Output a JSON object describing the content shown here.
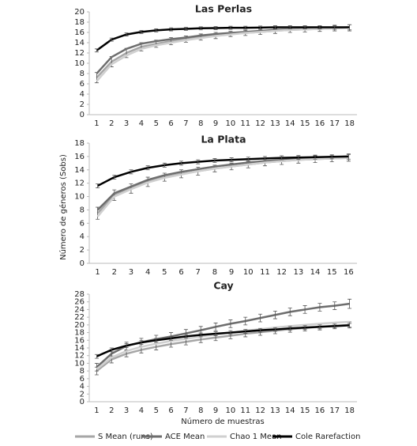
{
  "chart_data": [
    {
      "type": "line",
      "title": "Las Perlas",
      "categories": [
        1,
        2,
        3,
        4,
        5,
        6,
        7,
        8,
        9,
        10,
        11,
        12,
        13,
        14,
        15,
        16,
        17,
        18
      ],
      "ylim": [
        0,
        20
      ],
      "yticks": [
        0,
        2,
        4,
        6,
        8,
        10,
        12,
        14,
        16,
        18,
        20
      ],
      "series": [
        {
          "name": "S Mean (runs)",
          "color": "#a6a6a6",
          "values": [
            7.2,
            10.3,
            12,
            13.2,
            13.8,
            14.3,
            14.7,
            15.1,
            15.4,
            15.7,
            15.9,
            16.1,
            16.3,
            16.5,
            16.6,
            16.7,
            16.8,
            16.9
          ],
          "errors": [
            1,
            1,
            0.9,
            0.8,
            0.7,
            0.7,
            0.6,
            0.6,
            0.6,
            0.5,
            0.5,
            0.5,
            0.5,
            0.5,
            0.5,
            0.5,
            0.5,
            0.6
          ]
        },
        {
          "name": "ACE Mean",
          "color": "#6d6d6d",
          "values": [
            8,
            11.2,
            12.8,
            13.8,
            14.3,
            14.7,
            15,
            15.4,
            15.7,
            15.9,
            16.1,
            16.3,
            16.5,
            16.6,
            16.7,
            16.8,
            16.9,
            17
          ]
        },
        {
          "name": "Chao 1 Mean",
          "color": "#d0d0d0",
          "values": [
            6.5,
            9.8,
            11.5,
            12.8,
            13.5,
            14,
            14.5,
            14.9,
            15.3,
            15.6,
            15.9,
            16.1,
            16.3,
            16.5,
            16.6,
            16.7,
            16.8,
            16.9
          ]
        },
        {
          "name": "Cole Rarefaction",
          "color": "#000000",
          "values": [
            12.5,
            14.6,
            15.6,
            16.1,
            16.4,
            16.6,
            16.7,
            16.8,
            16.85,
            16.9,
            16.9,
            16.95,
            17,
            17,
            17,
            17,
            17,
            17
          ],
          "errors": [
            0.3,
            0.3,
            0.3,
            0.3,
            0.3,
            0.3,
            0.3,
            0.3,
            0.3,
            0.3,
            0.3,
            0.3,
            0.3,
            0.3,
            0.3,
            0.3,
            0.4,
            0.5
          ]
        }
      ]
    },
    {
      "type": "line",
      "title": "La Plata",
      "y_label": "Número de géneros (Sobs)",
      "categories": [
        1,
        2,
        3,
        4,
        5,
        6,
        7,
        8,
        9,
        10,
        11,
        12,
        13,
        14,
        15,
        16
      ],
      "ylim": [
        0,
        18
      ],
      "yticks": [
        0,
        2,
        4,
        6,
        8,
        10,
        12,
        14,
        16,
        18
      ],
      "series": [
        {
          "name": "S Mean (runs)",
          "color": "#a6a6a6",
          "values": [
            7.5,
            10.2,
            11.2,
            12.2,
            12.9,
            13.4,
            13.8,
            14.2,
            14.5,
            14.8,
            15.1,
            15.3,
            15.5,
            15.6,
            15.7,
            15.8
          ],
          "errors": [
            0.9,
            0.8,
            0.7,
            0.7,
            0.6,
            0.6,
            0.6,
            0.5,
            0.5,
            0.5,
            0.5,
            0.5,
            0.5,
            0.5,
            0.5,
            0.5
          ]
        },
        {
          "name": "ACE Mean",
          "color": "#6d6d6d",
          "values": [
            8,
            10.5,
            11.5,
            12.5,
            13.2,
            13.7,
            14.1,
            14.5,
            14.8,
            15.1,
            15.3,
            15.5,
            15.7,
            15.8,
            15.9,
            16
          ]
        },
        {
          "name": "Chao 1 Mean",
          "color": "#d0d0d0",
          "values": [
            7,
            10,
            11.1,
            12.1,
            12.8,
            13.3,
            13.8,
            14.2,
            14.5,
            14.8,
            15.1,
            15.3,
            15.5,
            15.6,
            15.7,
            15.8
          ]
        },
        {
          "name": "Cole Rarefaction",
          "color": "#000000",
          "values": [
            11.6,
            12.9,
            13.7,
            14.3,
            14.7,
            15,
            15.2,
            15.4,
            15.5,
            15.6,
            15.7,
            15.8,
            15.85,
            15.9,
            15.95,
            16
          ],
          "errors": [
            0.3,
            0.3,
            0.3,
            0.3,
            0.3,
            0.3,
            0.3,
            0.3,
            0.3,
            0.3,
            0.3,
            0.3,
            0.3,
            0.3,
            0.3,
            0.4
          ]
        }
      ]
    },
    {
      "type": "line",
      "title": "Cay",
      "x_label": "Número de muestras",
      "categories": [
        1,
        2,
        3,
        4,
        5,
        6,
        7,
        8,
        9,
        10,
        11,
        12,
        13,
        14,
        15,
        16,
        17,
        18
      ],
      "ylim": [
        0,
        28
      ],
      "yticks": [
        0,
        2,
        4,
        6,
        8,
        10,
        12,
        14,
        16,
        18,
        20,
        22,
        24,
        26,
        28
      ],
      "series": [
        {
          "name": "S Mean (runs)",
          "color": "#a6a6a6",
          "values": [
            8,
            11,
            12.5,
            13.5,
            14.3,
            15,
            15.6,
            16.2,
            16.7,
            17.2,
            17.7,
            18.1,
            18.5,
            18.9,
            19.2,
            19.5,
            19.8,
            20
          ],
          "errors": [
            1,
            0.9,
            0.8,
            0.8,
            0.8,
            0.8,
            0.8,
            0.8,
            0.8,
            0.8,
            0.8,
            0.8,
            0.8,
            0.8,
            0.8,
            0.8,
            0.8,
            0.8
          ]
        },
        {
          "name": "ACE Mean",
          "color": "#6d6d6d",
          "values": [
            9,
            12.5,
            14.5,
            15.5,
            16.3,
            17,
            17.8,
            18.6,
            19.5,
            20.3,
            21,
            21.8,
            22.6,
            23.4,
            24,
            24.6,
            25,
            25.5
          ],
          "errors": [
            1,
            1,
            1,
            1,
            1,
            1,
            1,
            1,
            1,
            1,
            1,
            1,
            1,
            1,
            1,
            1,
            1,
            1.2
          ]
        },
        {
          "name": "Chao 1 Mean",
          "color": "#d0d0d0",
          "values": [
            8.5,
            11.5,
            13.2,
            14.3,
            15.1,
            15.8,
            16.4,
            17,
            17.5,
            18,
            18.5,
            18.9,
            19.3,
            19.7,
            20,
            20.3,
            20.6,
            20.8
          ]
        },
        {
          "name": "Cole Rarefaction",
          "color": "#000000",
          "values": [
            11.8,
            13.5,
            14.6,
            15.4,
            16,
            16.5,
            17,
            17.4,
            17.7,
            18,
            18.3,
            18.6,
            18.8,
            19.1,
            19.3,
            19.5,
            19.7,
            19.9
          ],
          "errors": [
            0.5,
            0.5,
            0.5,
            0.5,
            0.5,
            0.5,
            0.5,
            0.5,
            0.5,
            0.5,
            0.5,
            0.5,
            0.5,
            0.5,
            0.5,
            0.5,
            0.5,
            0.5
          ]
        }
      ]
    }
  ]
}
